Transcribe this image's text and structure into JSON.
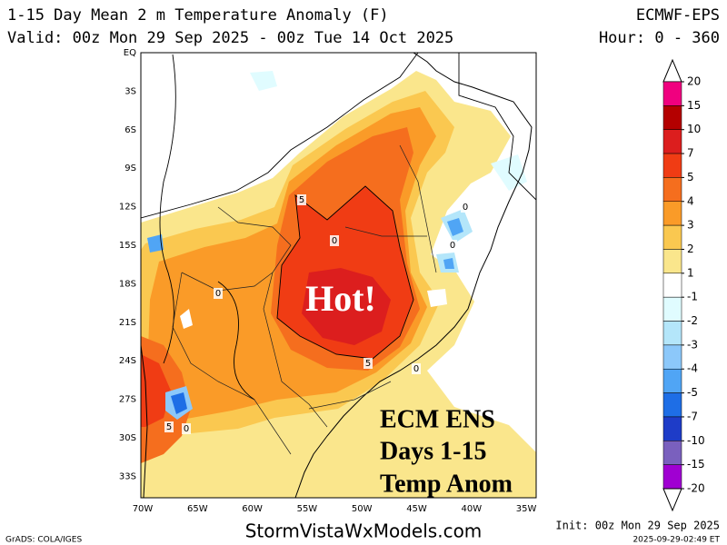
{
  "header": {
    "title": "1-15 Day Mean 2 m Temperature Anomaly (F)",
    "model": "ECMWF-EPS",
    "valid": "Valid: 00z Mon 29 Sep 2025 - 00z Tue 14 Oct 2025",
    "hours": "Hour: 0 - 360"
  },
  "map": {
    "lat_labels": [
      "EQ",
      "3S",
      "6S",
      "9S",
      "12S",
      "15S",
      "18S",
      "21S",
      "24S",
      "27S",
      "30S",
      "33S"
    ],
    "lon_labels": [
      "70W",
      "65W",
      "60W",
      "55W",
      "50W",
      "45W",
      "40W",
      "35W"
    ],
    "contour_labels": [
      "5",
      "0",
      "5",
      "0",
      "0",
      "0",
      "5",
      "0",
      "0"
    ],
    "annotations": [
      "Hot!",
      "ECM ENS",
      "Days 1-15",
      "Temp Anom"
    ]
  },
  "colorbar": {
    "labels": [
      20,
      15,
      10,
      7,
      5,
      4,
      3,
      2,
      1,
      -1,
      -2,
      -3,
      -4,
      -5,
      -7,
      -10,
      -15,
      -20
    ],
    "colors": [
      "#f0007f",
      "#b40000",
      "#dc1e1e",
      "#f03c14",
      "#f56e1e",
      "#fa9b28",
      "#fac850",
      "#fae68c",
      "#ffffff",
      "#e0fcff",
      "#b4e6fa",
      "#8cc8fa",
      "#50a5f5",
      "#1e6ee6",
      "#1e3cc8",
      "#7a60be",
      "#a000d2"
    ]
  },
  "footer": {
    "credit": "GrADS: COLA/IGES",
    "site": "StormVistaWxModels.com",
    "init": "Init: 00z Mon 29 Sep 2025",
    "timestamp": "2025-09-29-02:49 ET"
  }
}
